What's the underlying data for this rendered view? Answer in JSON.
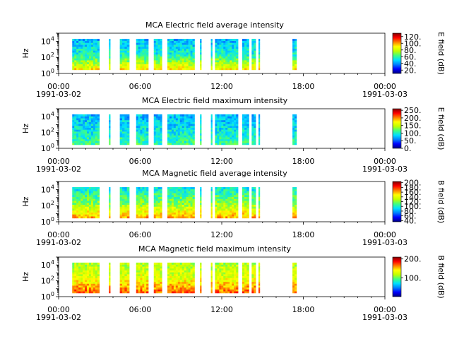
{
  "colors": {
    "jet": [
      "#000080",
      "#0000ff",
      "#0080ff",
      "#00e0ff",
      "#40ff80",
      "#c0ff00",
      "#ffff00",
      "#ff8000",
      "#ff0000",
      "#800000"
    ]
  },
  "time_ticks": {
    "labels": [
      "00:00",
      "06:00",
      "12:00",
      "18:00",
      "00:00"
    ],
    "dates": [
      "1991-03-02",
      "1991-03-03"
    ],
    "hours": [
      0,
      6,
      12,
      18,
      24
    ]
  },
  "freq_ticks": [
    "10^0",
    "10^2",
    "10^4"
  ],
  "chart_data": [
    {
      "type": "heatmap",
      "title": "MCA  Electric field average intensity",
      "xlabel": "",
      "ylabel": "Hz",
      "xlim_hours": [
        0,
        24
      ],
      "y_scale": "log",
      "ylim": [
        1,
        100000
      ],
      "colorbar": {
        "label": "E field (dB)",
        "ticks": [
          "20.",
          "40.",
          "60.",
          "80.",
          "100.",
          "120."
        ],
        "range": [
          10,
          130
        ]
      },
      "intervals_hours": [
        [
          1.0,
          3.0
        ],
        [
          3.7,
          3.8
        ],
        [
          4.5,
          5.2
        ],
        [
          5.7,
          6.0
        ],
        [
          6.0,
          6.6
        ],
        [
          7.0,
          7.6
        ],
        [
          8.0,
          10.0
        ],
        [
          10.4,
          10.5
        ],
        [
          11.2,
          11.3
        ],
        [
          11.5,
          13.2
        ],
        [
          13.5,
          14.0
        ],
        [
          14.2,
          14.5
        ],
        [
          14.7,
          14.8
        ],
        [
          17.2,
          17.5
        ]
      ],
      "typical_levels_db": {
        "low_freq": 90,
        "mid_freq": 55,
        "high_freq": 45
      }
    },
    {
      "type": "heatmap",
      "title": "MCA  Electric field maximum intensity",
      "xlabel": "",
      "ylabel": "Hz",
      "xlim_hours": [
        0,
        24
      ],
      "y_scale": "log",
      "ylim": [
        1,
        100000
      ],
      "colorbar": {
        "label": "E field (dB)",
        "ticks": [
          "0.",
          "50.",
          "100.",
          "150.",
          "200.",
          "250."
        ],
        "range": [
          0,
          260
        ]
      },
      "intervals_hours": [
        [
          1.0,
          3.0
        ],
        [
          3.7,
          3.8
        ],
        [
          4.5,
          5.2
        ],
        [
          5.7,
          6.0
        ],
        [
          6.0,
          6.6
        ],
        [
          7.0,
          7.6
        ],
        [
          8.0,
          10.0
        ],
        [
          10.4,
          10.5
        ],
        [
          11.2,
          11.3
        ],
        [
          11.5,
          13.2
        ],
        [
          13.5,
          14.0
        ],
        [
          14.2,
          14.5
        ],
        [
          14.7,
          14.8
        ],
        [
          17.2,
          17.5
        ]
      ],
      "typical_levels_db": {
        "low_freq": 110,
        "mid_freq": 90,
        "high_freq": 75
      }
    },
    {
      "type": "heatmap",
      "title": "MCA  Magnetic field average intensity",
      "xlabel": "",
      "ylabel": "Hz",
      "xlim_hours": [
        0,
        24
      ],
      "y_scale": "log",
      "ylim": [
        1,
        100000
      ],
      "colorbar": {
        "label": "B field (dB)",
        "ticks": [
          "40.",
          "60.",
          "80.",
          "100.",
          "120.",
          "140.",
          "160.",
          "180.",
          "200."
        ],
        "range": [
          35,
          205
        ]
      },
      "intervals_hours": [
        [
          1.0,
          3.0
        ],
        [
          3.7,
          3.8
        ],
        [
          4.5,
          5.2
        ],
        [
          5.7,
          6.0
        ],
        [
          6.0,
          6.6
        ],
        [
          7.0,
          7.6
        ],
        [
          8.0,
          10.0
        ],
        [
          10.4,
          10.5
        ],
        [
          11.2,
          11.3
        ],
        [
          11.5,
          13.2
        ],
        [
          13.5,
          14.0
        ],
        [
          14.2,
          14.5
        ],
        [
          14.7,
          14.8
        ],
        [
          17.2,
          17.5
        ]
      ],
      "typical_levels_db": {
        "low_freq": 160,
        "mid_freq": 120,
        "high_freq": 95
      }
    },
    {
      "type": "heatmap",
      "title": "MCA  Magnetic field maximum intensity",
      "xlabel": "",
      "ylabel": "Hz",
      "xlim_hours": [
        0,
        24
      ],
      "y_scale": "log",
      "ylim": [
        1,
        100000
      ],
      "colorbar": {
        "label": "B field (dB)",
        "ticks": [
          "100.",
          "200."
        ],
        "range": [
          0,
          210
        ]
      },
      "intervals_hours": [
        [
          1.0,
          3.0
        ],
        [
          3.7,
          3.8
        ],
        [
          4.5,
          5.2
        ],
        [
          5.7,
          6.0
        ],
        [
          6.0,
          6.6
        ],
        [
          7.0,
          7.6
        ],
        [
          8.0,
          10.0
        ],
        [
          10.4,
          10.5
        ],
        [
          11.2,
          11.3
        ],
        [
          11.5,
          13.2
        ],
        [
          13.5,
          14.0
        ],
        [
          14.2,
          14.5
        ],
        [
          14.7,
          14.8
        ],
        [
          17.2,
          17.5
        ]
      ],
      "typical_levels_db": {
        "low_freq": 170,
        "mid_freq": 130,
        "high_freq": 115
      }
    }
  ]
}
